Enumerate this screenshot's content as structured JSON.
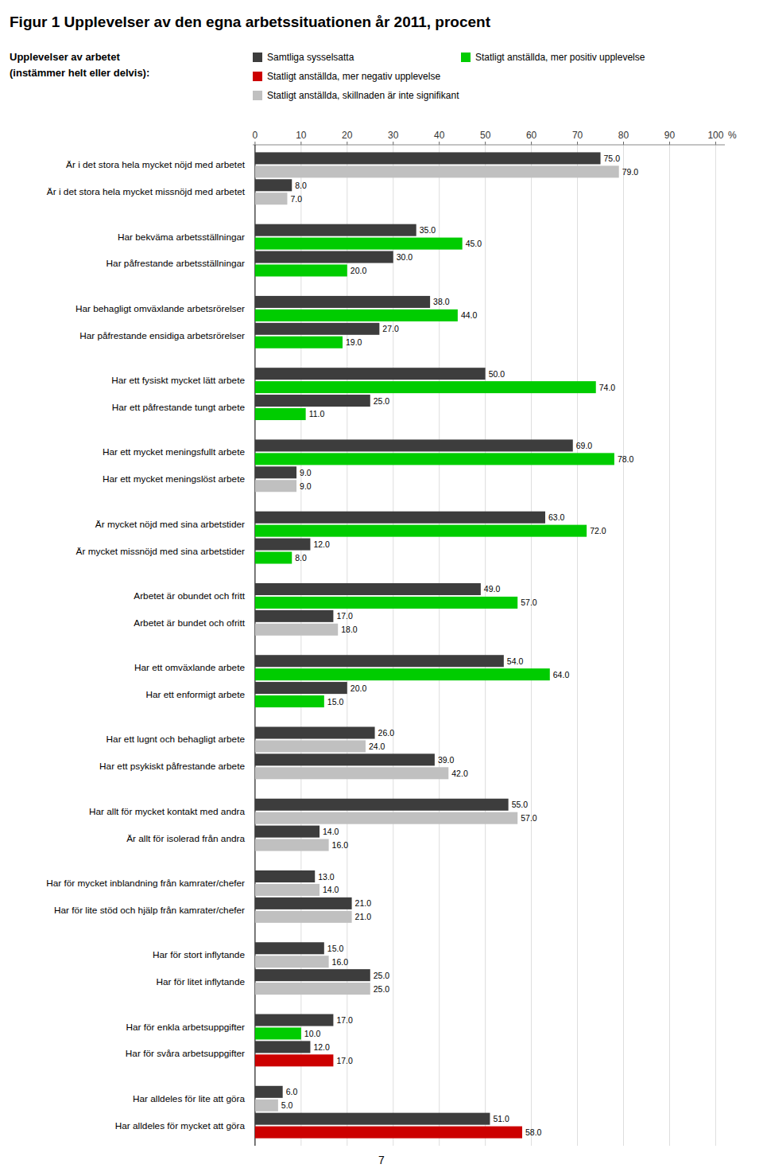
{
  "chart_data": {
    "type": "bar",
    "orientation": "horizontal",
    "title": "Figur 1 Upplevelser av den egna arbetssituationen år 2011, procent",
    "xlabel": "%",
    "annotations": [
      "Upplevelser av arbetet",
      "(instämmer helt eller delvis):",
      "7"
    ],
    "categories": [
      "Är i det stora hela mycket nöjd med arbetet",
      "Är i det stora hela mycket missnöjd med arbetet",
      "Har bekväma arbetsställningar",
      "Har påfrestande arbetsställningar",
      "Har behagligt omväxlande arbetsrörelser",
      "Har påfrestande ensidiga arbetsrörelser",
      "Har ett fysiskt mycket lätt arbete",
      "Har ett påfrestande tungt arbete",
      "Har ett mycket meningsfullt arbete",
      "Har ett mycket meningslöst arbete",
      "Är mycket nöjd med sina arbetstider",
      "Är mycket missnöjd med sina arbetstider",
      "Arbetet är obundet och fritt",
      "Arbetet är bundet och ofritt",
      "Har ett omväxlande arbete",
      "Har ett enformigt arbete",
      "Har ett lugnt och behagligt arbete",
      "Har ett psykiskt påfrestande arbete",
      "Har allt för mycket kontakt med andra",
      "Är allt för isolerad från andra",
      "Har för mycket inblandning från kamrater/chefer",
      "Har för lite stöd och hjälp från kamrater/chefer",
      "Har för stort inflytande",
      "Har för litet inflytande",
      "Har för enkla arbetsuppgifter",
      "Har för svåra arbetsuppgifter",
      "Har alldeles för lite att göra",
      "Har alldeles för mycket att göra"
    ],
    "series": [
      {
        "name": "Samtliga sysselsatta",
        "color": "#3d3d3d",
        "values": [
          75.0,
          8.0,
          35.0,
          30.0,
          38.0,
          27.0,
          50.0,
          25.0,
          69.0,
          9.0,
          63.0,
          12.0,
          49.0,
          17.0,
          54.0,
          20.0,
          26.0,
          39.0,
          55.0,
          14.0,
          13.0,
          21.0,
          15.0,
          25.0,
          17.0,
          12.0,
          6.0,
          51.0
        ],
        "value_labels": [
          "75.0",
          "8.0",
          "35.0",
          "30.0",
          "38.0",
          "27.0",
          "50.0",
          "25.0",
          "69.0",
          "9.0",
          "63.0",
          "12.0",
          "49.0",
          "17.0",
          "54.0",
          "20.0",
          "26.0",
          "39.0",
          "55.0",
          "14.0",
          "13.0",
          "21.0",
          "15.0",
          "25.0",
          "17.0",
          "12.0",
          "6.0",
          "51.0"
        ]
      },
      {
        "name": "Statligt anställda, mer positiv upplevelse",
        "color": "#00cc00",
        "values": [
          null,
          null,
          45.0,
          20.0,
          44.0,
          19.0,
          74.0,
          11.0,
          78.0,
          null,
          72.0,
          8.0,
          57.0,
          null,
          64.0,
          15.0,
          null,
          null,
          null,
          null,
          null,
          null,
          null,
          null,
          10.0,
          null,
          null,
          null
        ],
        "value_labels": [
          null,
          null,
          "45.0",
          "20.0",
          "44.0",
          "19.0",
          "74.0",
          "11.0",
          "78.0",
          null,
          "72.0",
          "8.0",
          "57.0",
          null,
          "64.0",
          "15.0",
          null,
          null,
          null,
          null,
          null,
          null,
          null,
          null,
          "10.0",
          null,
          null,
          null
        ]
      },
      {
        "name": "Statligt anställda, mer negativ upplevelse",
        "color": "#cc0000",
        "values": [
          null,
          null,
          null,
          null,
          null,
          null,
          null,
          null,
          null,
          null,
          null,
          null,
          null,
          null,
          null,
          null,
          null,
          null,
          null,
          null,
          null,
          null,
          null,
          null,
          null,
          17.0,
          null,
          58.0
        ],
        "value_labels": [
          null,
          null,
          null,
          null,
          null,
          null,
          null,
          null,
          null,
          null,
          null,
          null,
          null,
          null,
          null,
          null,
          null,
          null,
          null,
          null,
          null,
          null,
          null,
          null,
          null,
          "17.0",
          null,
          "58.0"
        ]
      },
      {
        "name": "Statligt anställda, skillnaden är inte signifikant",
        "color": "#c0c0c0",
        "values": [
          79.0,
          7.0,
          null,
          null,
          null,
          null,
          null,
          null,
          null,
          9.0,
          null,
          null,
          null,
          18.0,
          null,
          null,
          24.0,
          42.0,
          57.0,
          16.0,
          14.0,
          21.0,
          16.0,
          25.0,
          null,
          null,
          5.0,
          null
        ],
        "value_labels": [
          "79.0",
          "7.0",
          null,
          null,
          null,
          null,
          null,
          null,
          null,
          "9.0",
          null,
          null,
          null,
          "18.0",
          null,
          null,
          "24.0",
          "42.0",
          "57.0",
          "16.0",
          "14.0",
          "21.0",
          "16.0",
          "25.0",
          null,
          null,
          "5.0",
          null
        ]
      }
    ],
    "xlim": [
      -0.5,
      102
    ],
    "xticks": [
      0,
      10,
      20,
      30,
      40,
      50,
      60,
      70,
      80,
      90,
      100
    ],
    "grid": true,
    "legend": "top",
    "data_labels": true
  }
}
